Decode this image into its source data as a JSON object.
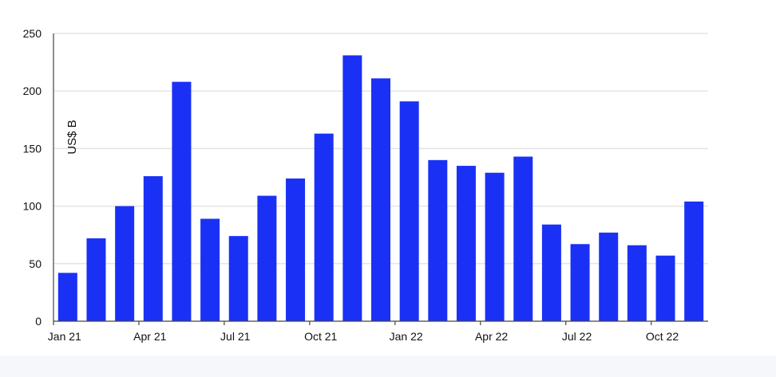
{
  "chart_data": {
    "type": "bar",
    "title": "",
    "xlabel": "",
    "ylabel": "US$ B",
    "ylim": [
      0,
      250
    ],
    "yticks": [
      0,
      50,
      100,
      150,
      200,
      250
    ],
    "grid": true,
    "bar_color": "#1a31f5",
    "categories": [
      "Jan 21",
      "Feb 21",
      "Mar 21",
      "Apr 21",
      "May 21",
      "Jun 21",
      "Jul 21",
      "Aug 21",
      "Sep 21",
      "Oct 21",
      "Nov 21",
      "Dec 21",
      "Jan 22",
      "Feb 22",
      "Mar 22",
      "Apr 22",
      "May 22",
      "Jun 22",
      "Jul 22",
      "Aug 22",
      "Sep 22",
      "Oct 22",
      "Nov 22"
    ],
    "xtick_labels": {
      "0": "Jan 21",
      "3": "Apr 21",
      "6": "Jul 21",
      "9": "Oct 21",
      "12": "Jan 22",
      "15": "Apr 22",
      "18": "Jul 22",
      "21": "Oct 22"
    },
    "values": [
      42,
      72,
      100,
      126,
      208,
      89,
      74,
      109,
      124,
      163,
      231,
      211,
      191,
      140,
      135,
      129,
      143,
      84,
      67,
      77,
      66,
      57,
      104
    ]
  }
}
